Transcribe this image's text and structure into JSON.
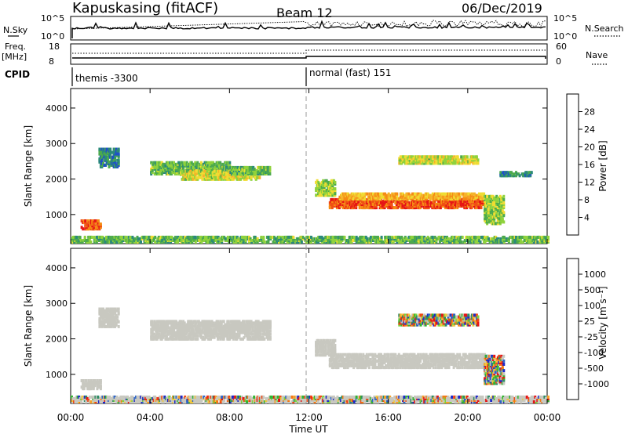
{
  "header": {
    "station": "Kapuskasing (fitACF)",
    "beam": "Beam 12",
    "date": "06/Dec/2019"
  },
  "status_panels": {
    "nsky_label": "N.Sky",
    "nsky_ticks": [
      "10^5",
      "10^0"
    ],
    "nsearch_label": "N.Search",
    "nsearch_ticks": [
      "10^5",
      "10^0"
    ],
    "freq_label_1": "Freq.",
    "freq_label_2": "[MHz]",
    "freq_ticks": [
      "18",
      "8"
    ],
    "nave_label": "Nave",
    "nave_ticks": [
      "60",
      "0"
    ],
    "cpid_label": "CPID",
    "cpid_entries": [
      {
        "text": "themis -3300",
        "start_hour": 0
      },
      {
        "text": "normal (fast) 151",
        "start_hour": 12
      }
    ]
  },
  "x_axis": {
    "label": "Time UT",
    "ticks": [
      "00:00",
      "04:00",
      "08:00",
      "12:00",
      "16:00",
      "20:00",
      "00:00"
    ],
    "range_hours": [
      0,
      24
    ]
  },
  "chart_data": [
    {
      "type": "heatmap",
      "panel": "power",
      "xlabel": "Time UT",
      "ylabel": "Slant Range [km]",
      "yticks": [
        1000,
        2000,
        3000,
        4000
      ],
      "ylim": [
        180,
        4550
      ],
      "xlim": [
        0,
        24
      ],
      "colorbar_label": "Power [dB]",
      "colorbar_ticks": [
        "4",
        "8",
        "12",
        "16",
        "20",
        "24",
        "28"
      ],
      "colorbar_colors": [
        "#1414e6",
        "#1f50c8",
        "#2b8a7a",
        "#4caa4c",
        "#8fd23c",
        "#f0dc32",
        "#f5b428",
        "#f58c14",
        "#f05014",
        "#e61414"
      ],
      "echo_regions": [
        {
          "t0": 0.5,
          "t1": 1.5,
          "r0": 550,
          "r1": 800,
          "level": 24
        },
        {
          "t0": 1.4,
          "t1": 2.4,
          "r0": 2300,
          "r1": 2800,
          "level": 6
        },
        {
          "t0": 4.0,
          "t1": 8.0,
          "r0": 2100,
          "r1": 2450,
          "level": 10
        },
        {
          "t0": 5.5,
          "t1": 9.5,
          "r0": 1950,
          "r1": 2200,
          "level": 14
        },
        {
          "t0": 8.0,
          "t1": 10.0,
          "r0": 2100,
          "r1": 2300,
          "level": 10
        },
        {
          "t0": 12.3,
          "t1": 13.3,
          "r0": 1500,
          "r1": 1950,
          "level": 12
        },
        {
          "t0": 13.0,
          "t1": 21.0,
          "r0": 1150,
          "r1": 1420,
          "level": 24
        },
        {
          "t0": 13.5,
          "t1": 20.8,
          "r0": 1400,
          "r1": 1550,
          "level": 18
        },
        {
          "t0": 16.5,
          "t1": 20.5,
          "r0": 2400,
          "r1": 2600,
          "level": 14
        },
        {
          "t0": 20.8,
          "t1": 21.8,
          "r0": 700,
          "r1": 1500,
          "level": 12
        },
        {
          "t0": 21.6,
          "t1": 23.2,
          "r0": 2050,
          "r1": 2150,
          "level": 6
        },
        {
          "t0": 0.0,
          "t1": 24.0,
          "r0": 180,
          "r1": 360,
          "level": 10
        }
      ]
    },
    {
      "type": "heatmap",
      "panel": "velocity",
      "xlabel": "Time UT",
      "ylabel": "Slant Range [km]",
      "yticks": [
        1000,
        2000,
        3000,
        4000
      ],
      "ylim": [
        180,
        4550
      ],
      "xlim": [
        0,
        24
      ],
      "colorbar_label": "Velocity [m s⁻¹]",
      "colorbar_ticks": [
        "1000",
        "500",
        "100",
        "25",
        "-25",
        "-100",
        "-500",
        "-1000"
      ],
      "colorbar_colors": [
        "#1e28c8",
        "#2d64c8",
        "#2d8c64",
        "#32b432",
        "#7dd23c",
        "#c8c8c0",
        "#c8c8c0",
        "#f0c83c",
        "#f5a028",
        "#f57814",
        "#f04614",
        "#e61414"
      ],
      "ground_scatter_color": "#c8c8c0",
      "echo_regions": [
        {
          "t0": 0.5,
          "t1": 1.5,
          "r0": 550,
          "r1": 800,
          "kind": "ground"
        },
        {
          "t0": 1.4,
          "t1": 2.4,
          "r0": 2300,
          "r1": 2800,
          "kind": "ground"
        },
        {
          "t0": 4.0,
          "t1": 10.0,
          "r0": 1950,
          "r1": 2450,
          "kind": "ground"
        },
        {
          "t0": 12.3,
          "t1": 13.3,
          "r0": 1500,
          "r1": 1950,
          "kind": "ground"
        },
        {
          "t0": 13.0,
          "t1": 20.8,
          "r0": 1150,
          "r1": 1550,
          "kind": "ground"
        },
        {
          "t0": 16.5,
          "t1": 20.5,
          "r0": 2350,
          "r1": 2650,
          "kind": "ionospheric"
        },
        {
          "t0": 20.8,
          "t1": 21.8,
          "r0": 700,
          "r1": 1500,
          "kind": "ionospheric"
        },
        {
          "t0": 0.0,
          "t1": 24.0,
          "r0": 180,
          "r1": 360,
          "kind": "mixed"
        }
      ]
    }
  ]
}
